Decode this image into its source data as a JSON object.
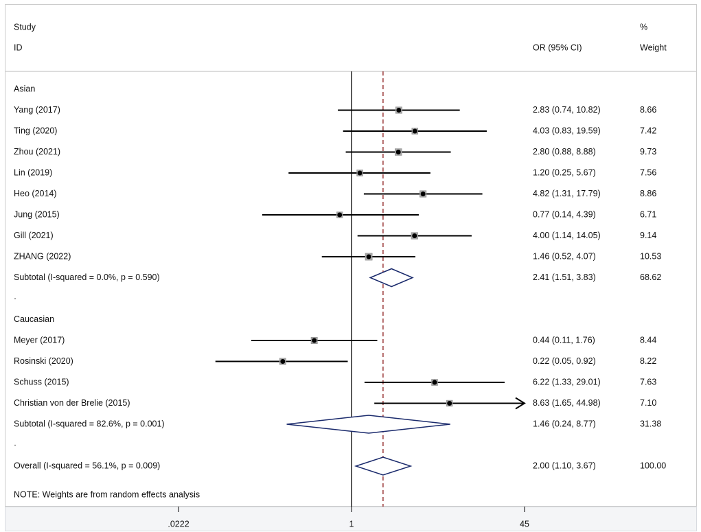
{
  "chart_data": {
    "type": "forest",
    "scale": "log",
    "header": {
      "study_line1": "Study",
      "study_line2": "ID",
      "or_label": "OR (95% CI)",
      "weight_line1": "%",
      "weight_line2": "Weight"
    },
    "null_value": 1,
    "overall_estimate": 2.0,
    "x_ticks": [
      {
        "value": 0.0222,
        "label": ".0222"
      },
      {
        "value": 1,
        "label": "1"
      },
      {
        "value": 45,
        "label": "45"
      }
    ],
    "groups": [
      {
        "name": "Asian",
        "studies": [
          {
            "id": "Yang (2017)",
            "or": 2.83,
            "lo": 0.74,
            "hi": 10.82,
            "or_text": "2.83 (0.74, 10.82)",
            "weight": "8.66"
          },
          {
            "id": "Ting (2020)",
            "or": 4.03,
            "lo": 0.83,
            "hi": 19.59,
            "or_text": "4.03 (0.83, 19.59)",
            "weight": "7.42"
          },
          {
            "id": "Zhou (2021)",
            "or": 2.8,
            "lo": 0.88,
            "hi": 8.88,
            "or_text": "2.80 (0.88, 8.88)",
            "weight": "9.73"
          },
          {
            "id": "Lin (2019)",
            "or": 1.2,
            "lo": 0.25,
            "hi": 5.67,
            "or_text": "1.20 (0.25, 5.67)",
            "weight": "7.56"
          },
          {
            "id": "Heo (2014)",
            "or": 4.82,
            "lo": 1.31,
            "hi": 17.79,
            "or_text": "4.82 (1.31, 17.79)",
            "weight": "8.86"
          },
          {
            "id": "Jung (2015)",
            "or": 0.77,
            "lo": 0.14,
            "hi": 4.39,
            "or_text": "0.77 (0.14, 4.39)",
            "weight": "6.71"
          },
          {
            "id": "Gill (2021)",
            "or": 4.0,
            "lo": 1.14,
            "hi": 14.05,
            "or_text": "4.00 (1.14, 14.05)",
            "weight": "9.14"
          },
          {
            "id": "ZHANG (2022)",
            "or": 1.46,
            "lo": 0.52,
            "hi": 4.07,
            "or_text": "1.46 (0.52, 4.07)",
            "weight": "10.53"
          }
        ],
        "subtotal": {
          "label": "Subtotal  (I-squared = 0.0%, p = 0.590)",
          "or": 2.41,
          "lo": 1.51,
          "hi": 3.83,
          "or_text": "2.41 (1.51, 3.83)",
          "weight": "68.62"
        }
      },
      {
        "name": "Caucasian",
        "studies": [
          {
            "id": "Meyer (2017)",
            "or": 0.44,
            "lo": 0.11,
            "hi": 1.76,
            "or_text": "0.44 (0.11, 1.76)",
            "weight": "8.44"
          },
          {
            "id": "Rosinski (2020)",
            "or": 0.22,
            "lo": 0.05,
            "hi": 0.92,
            "or_text": "0.22 (0.05, 0.92)",
            "weight": "8.22"
          },
          {
            "id": "Schuss (2015)",
            "or": 6.22,
            "lo": 1.33,
            "hi": 29.01,
            "or_text": "6.22 (1.33, 29.01)",
            "weight": "7.63"
          },
          {
            "id": "Christian von der Brelie (2015)",
            "or": 8.63,
            "lo": 1.65,
            "hi": 44.98,
            "or_text": "8.63 (1.65, 44.98)",
            "weight": "7.10",
            "arrow": true
          }
        ],
        "subtotal": {
          "label": "Subtotal  (I-squared = 82.6%, p = 0.001)",
          "or": 1.46,
          "lo": 0.24,
          "hi": 8.77,
          "or_text": "1.46 (0.24, 8.77)",
          "weight": "31.38"
        }
      }
    ],
    "overall": {
      "label": "Overall  (I-squared = 56.1%, p = 0.009)",
      "or": 2.0,
      "lo": 1.1,
      "hi": 3.67,
      "or_text": "2.00 (1.10, 3.67)",
      "weight": "100.00"
    },
    "note": "NOTE: Weights are from random effects analysis"
  }
}
